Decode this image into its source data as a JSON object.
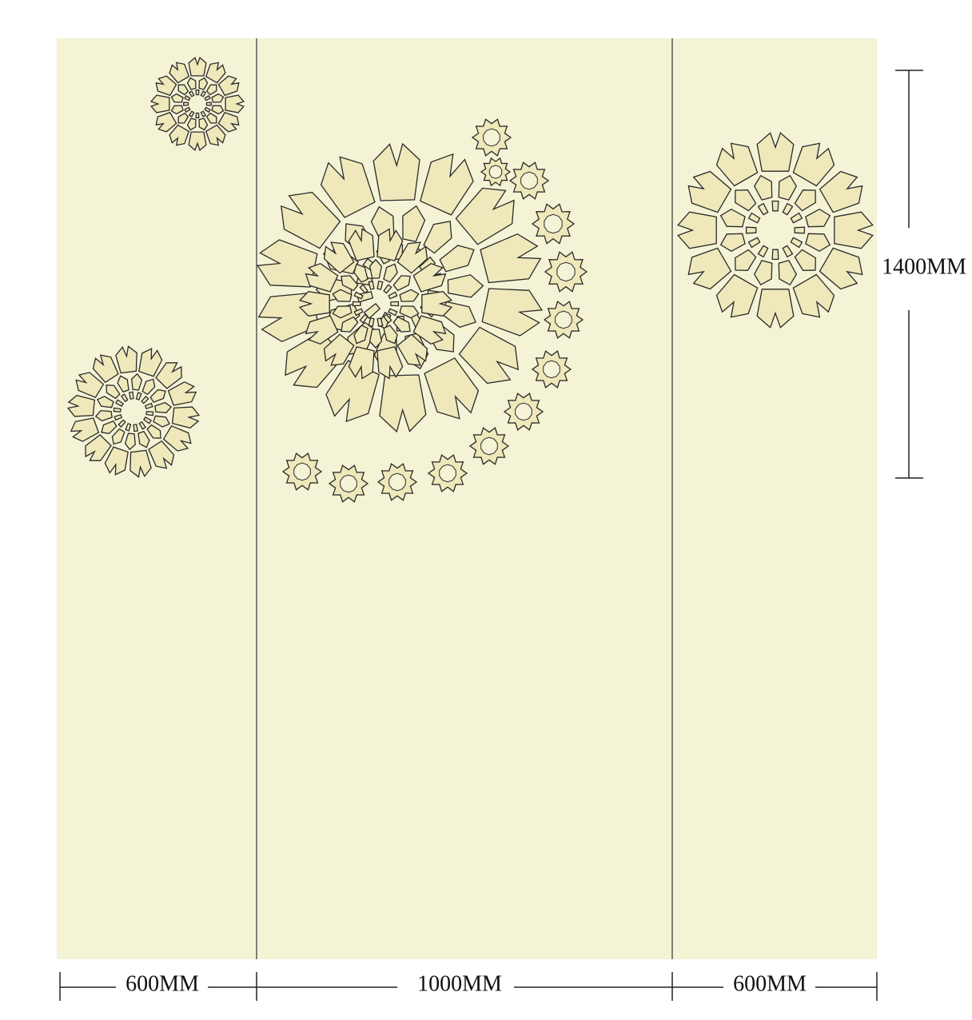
{
  "dimensions": {
    "widths": [
      "600MM",
      "1000MM",
      "600MM"
    ],
    "height": "1400MM"
  }
}
